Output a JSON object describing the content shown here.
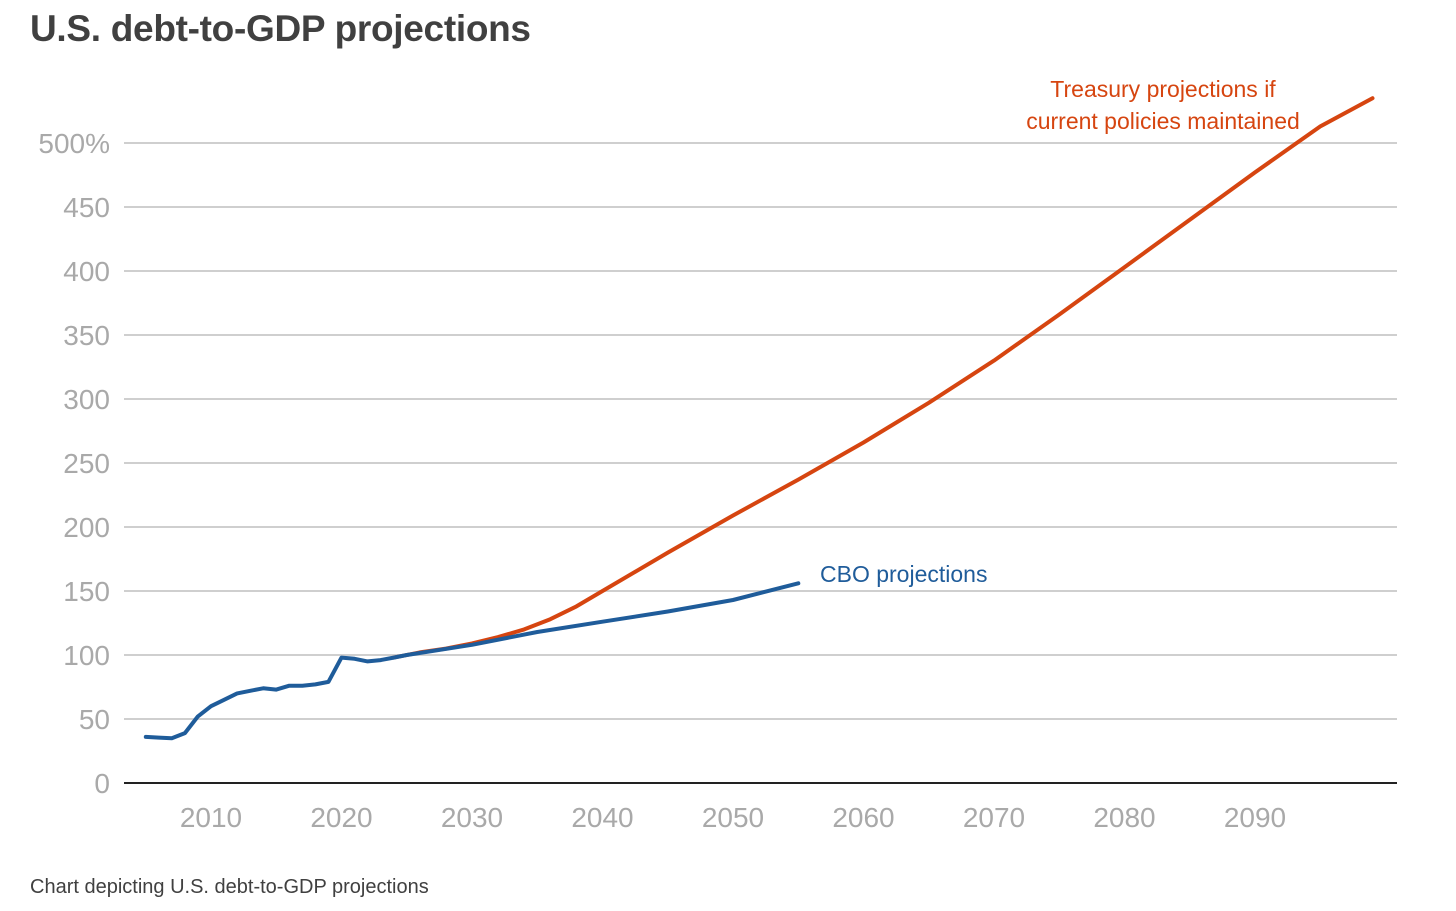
{
  "title": "U.S. debt-to-GDP projections",
  "caption": "Chart depicting U.S. debt-to-GDP projections",
  "colors": {
    "treasury": "#d64510",
    "cbo": "#1f5c9a",
    "grid": "#cfcfcf",
    "axis": "#222222",
    "tick": "#a9a9a9"
  },
  "chart_data": {
    "type": "line",
    "title": "U.S. debt-to-GDP projections",
    "xlim": [
      2004,
      2102
    ],
    "ylim": [
      0,
      500
    ],
    "ylabel_unit": "%",
    "grid": true,
    "yticks": [
      {
        "value": 500,
        "label": "500%"
      },
      {
        "value": 450,
        "label": "450"
      },
      {
        "value": 400,
        "label": "400"
      },
      {
        "value": 350,
        "label": "350"
      },
      {
        "value": 300,
        "label": "300"
      },
      {
        "value": 250,
        "label": "250"
      },
      {
        "value": 200,
        "label": "200"
      },
      {
        "value": 150,
        "label": "150"
      },
      {
        "value": 100,
        "label": "100"
      },
      {
        "value": 50,
        "label": "50"
      },
      {
        "value": 0,
        "label": "0"
      }
    ],
    "xticks": [
      {
        "value": 2010,
        "label": "2010"
      },
      {
        "value": 2020,
        "label": "2020"
      },
      {
        "value": 2030,
        "label": "2030"
      },
      {
        "value": 2040,
        "label": "2040"
      },
      {
        "value": 2050,
        "label": "2050"
      },
      {
        "value": 2060,
        "label": "2060"
      },
      {
        "value": 2070,
        "label": "2070"
      },
      {
        "value": 2080,
        "label": "2080"
      },
      {
        "value": 2090,
        "label": "2090"
      }
    ],
    "series": [
      {
        "name": "Treasury projections if current policies maintained",
        "color": "#d64510",
        "label_lines": [
          "Treasury projections if",
          "current policies maintained"
        ],
        "points": [
          [
            2024,
            98
          ],
          [
            2026,
            102
          ],
          [
            2028,
            105
          ],
          [
            2030,
            109
          ],
          [
            2032,
            114
          ],
          [
            2034,
            120
          ],
          [
            2036,
            128
          ],
          [
            2038,
            138
          ],
          [
            2040,
            150
          ],
          [
            2045,
            180
          ],
          [
            2050,
            209
          ],
          [
            2055,
            237
          ],
          [
            2060,
            266
          ],
          [
            2065,
            297
          ],
          [
            2070,
            330
          ],
          [
            2075,
            366
          ],
          [
            2080,
            403
          ],
          [
            2085,
            440
          ],
          [
            2090,
            477
          ],
          [
            2095,
            513
          ],
          [
            2099,
            535
          ]
        ]
      },
      {
        "name": "CBO projections",
        "color": "#1f5c9a",
        "label_lines": [
          "CBO projections"
        ],
        "points": [
          [
            2005,
            36
          ],
          [
            2006,
            35.5
          ],
          [
            2007,
            35
          ],
          [
            2008,
            39
          ],
          [
            2009,
            52
          ],
          [
            2010,
            60
          ],
          [
            2011,
            65
          ],
          [
            2012,
            70
          ],
          [
            2013,
            72
          ],
          [
            2014,
            74
          ],
          [
            2015,
            73
          ],
          [
            2016,
            76
          ],
          [
            2017,
            76
          ],
          [
            2018,
            77
          ],
          [
            2019,
            79
          ],
          [
            2020,
            98
          ],
          [
            2021,
            97
          ],
          [
            2022,
            95
          ],
          [
            2023,
            96
          ],
          [
            2024,
            98
          ],
          [
            2025,
            100
          ],
          [
            2030,
            108
          ],
          [
            2035,
            118
          ],
          [
            2040,
            126
          ],
          [
            2045,
            134
          ],
          [
            2050,
            143
          ],
          [
            2055,
            156
          ]
        ]
      }
    ]
  }
}
